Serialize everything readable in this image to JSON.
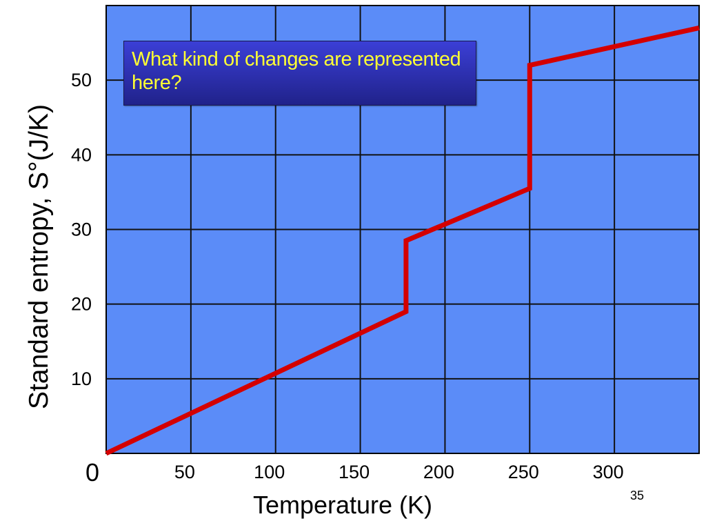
{
  "chart_data": {
    "type": "line",
    "title": "",
    "xlabel": "Temperature (K)",
    "ylabel": "Standard entropy, S°(J/K)",
    "xlim": [
      0,
      350
    ],
    "ylim": [
      0,
      60
    ],
    "x_ticks": [
      0,
      50,
      100,
      150,
      200,
      250,
      300
    ],
    "x_tick_labels": [
      "0",
      "50",
      "100",
      "150",
      "200",
      "250",
      "300"
    ],
    "y_ticks": [
      10,
      20,
      30,
      40,
      50
    ],
    "y_tick_labels": [
      "10",
      "20",
      "30",
      "40",
      "50"
    ],
    "grid": true,
    "plot_background": "#5b8cf8",
    "line_color": "#d40000",
    "series": [
      {
        "x": [
          0,
          177,
          177,
          250,
          250,
          350
        ],
        "y": [
          0,
          19,
          28.5,
          35.5,
          52,
          57
        ]
      }
    ]
  },
  "callout": {
    "text": "What kind of changes are represented here?"
  },
  "page_number": "35"
}
